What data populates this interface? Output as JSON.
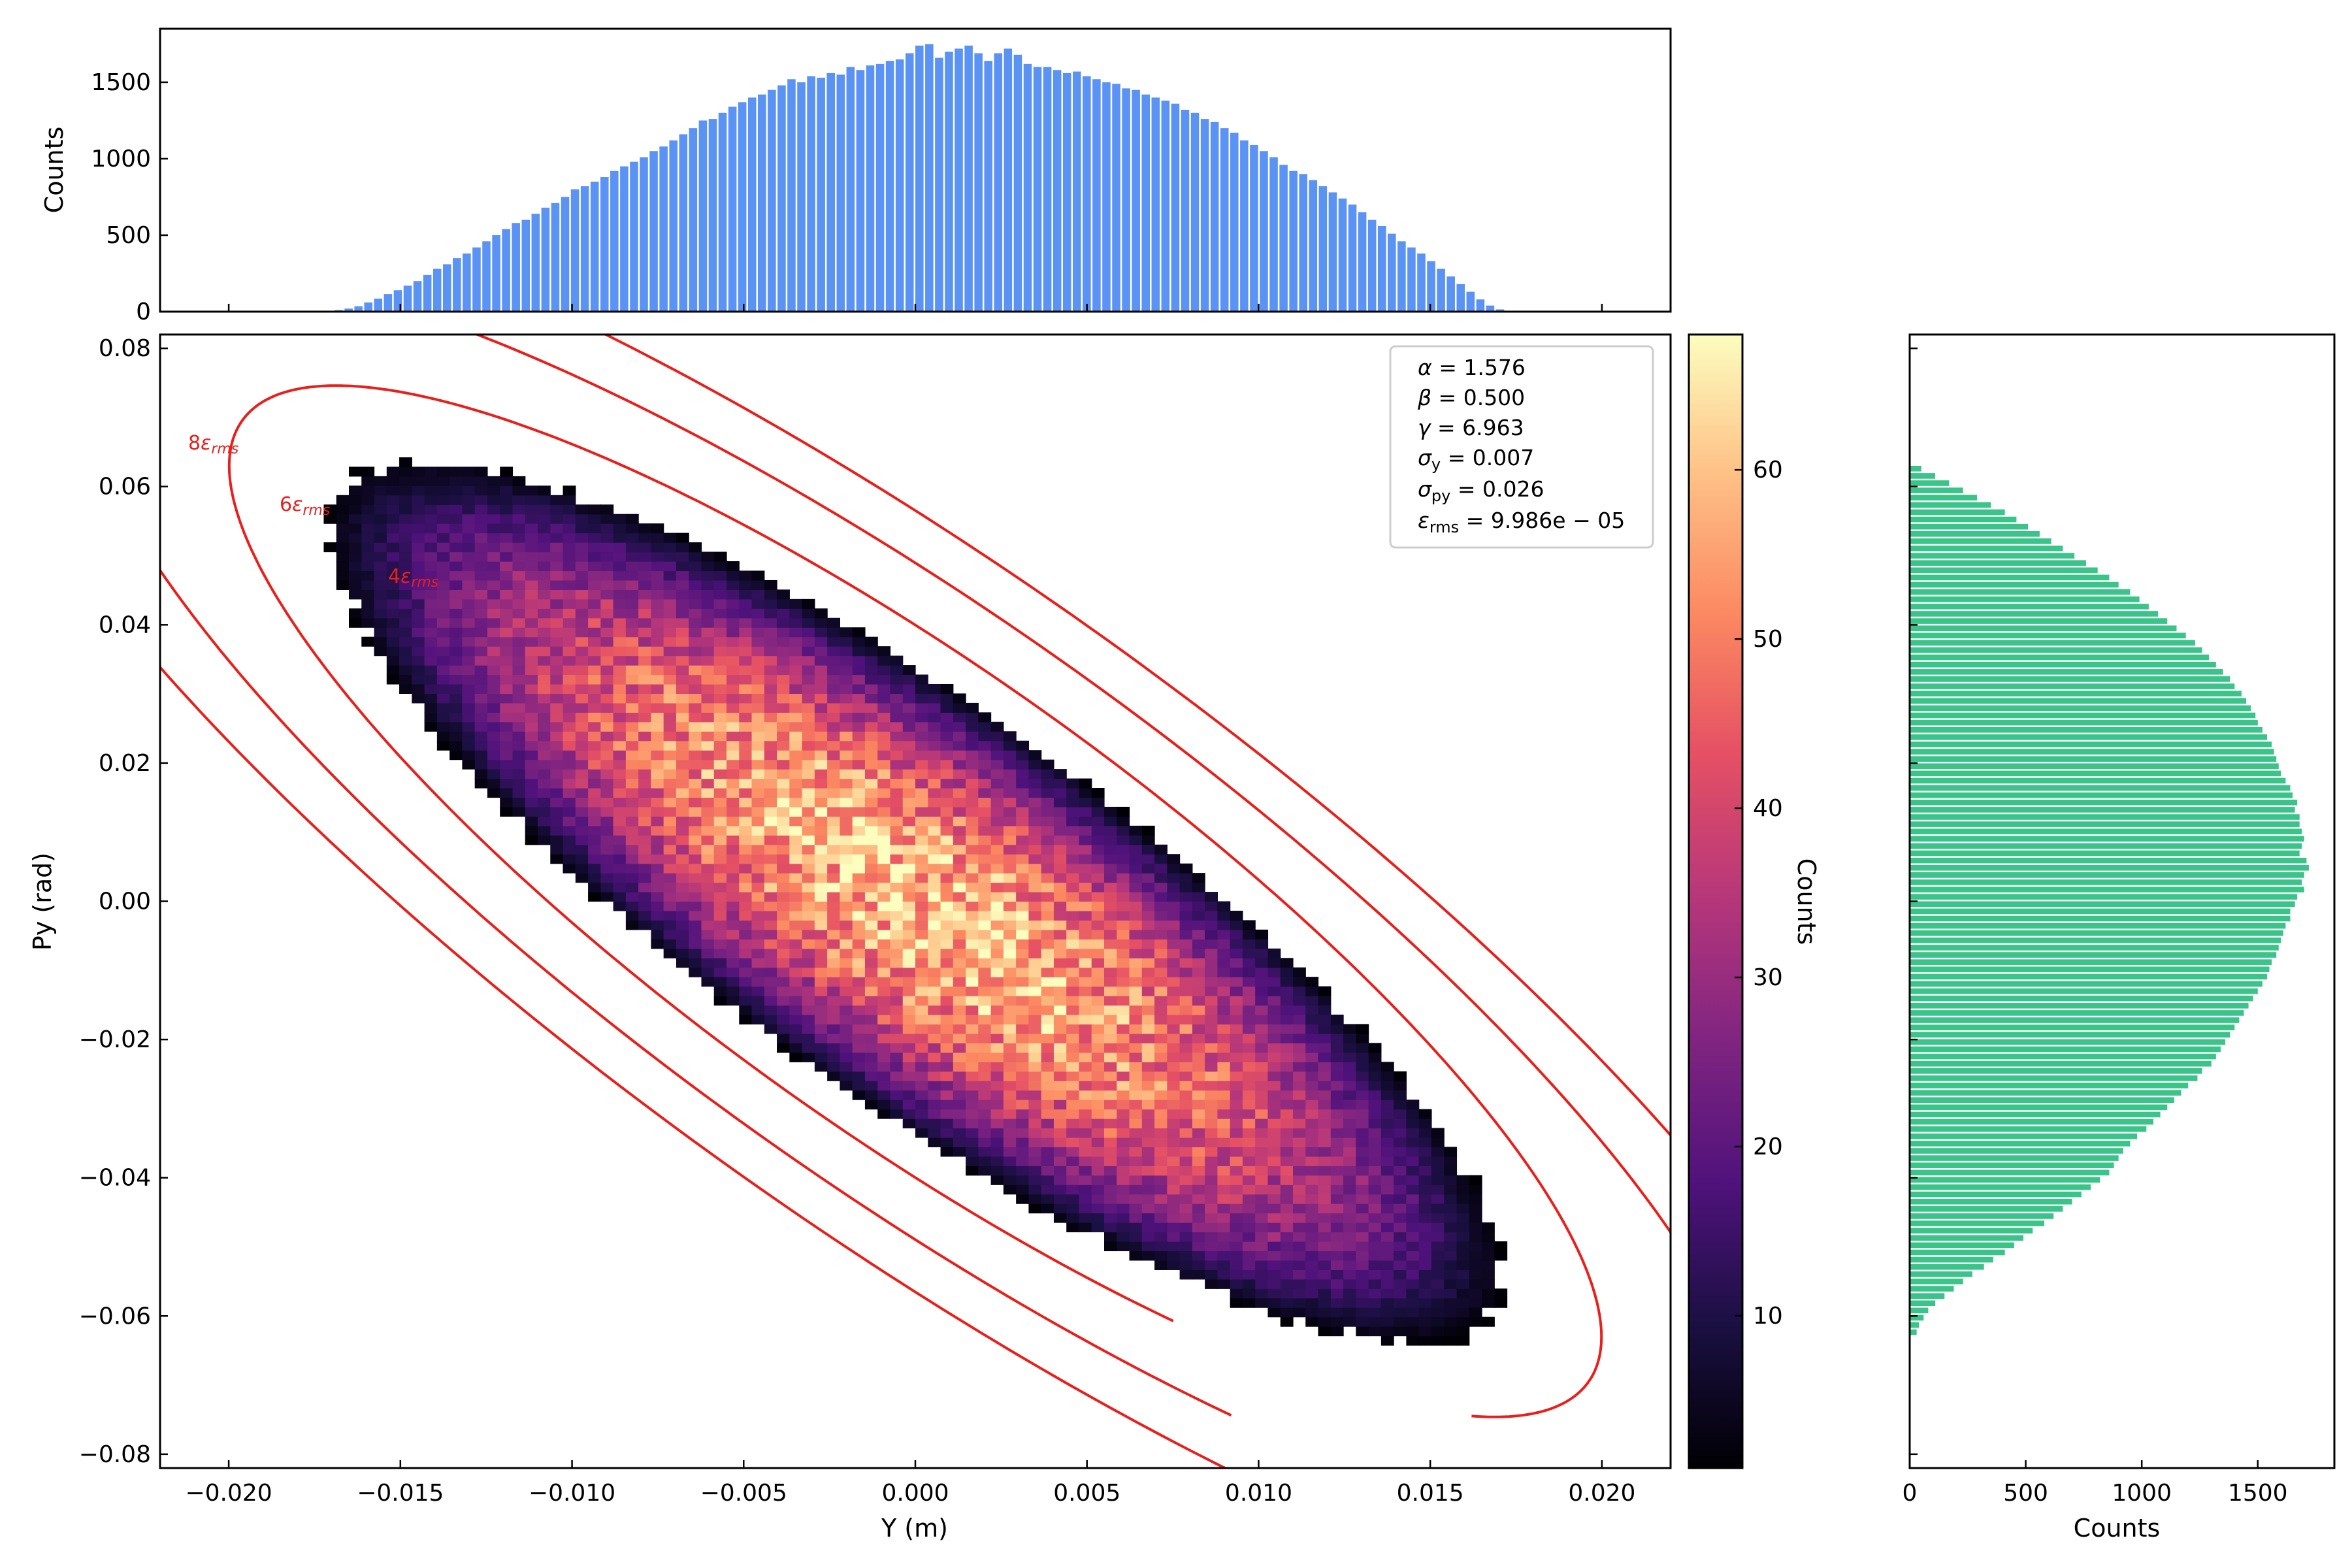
{
  "chart_data": [
    {
      "panel": "top-histogram",
      "type": "bar",
      "title": "",
      "xlabel": "",
      "ylabel": "Counts",
      "xlim": [
        -0.022,
        0.022
      ],
      "ylim": [
        0,
        1850
      ],
      "yticks": [
        0,
        500,
        1000,
        1500
      ],
      "bar_color": "#5b93f5",
      "bin_range": [
        -0.0172,
        0.0172
      ],
      "bins": 120,
      "values": [
        5,
        10,
        20,
        35,
        60,
        85,
        115,
        140,
        170,
        200,
        240,
        280,
        310,
        350,
        380,
        420,
        460,
        500,
        540,
        580,
        600,
        640,
        680,
        710,
        750,
        800,
        820,
        850,
        880,
        920,
        950,
        980,
        1010,
        1050,
        1080,
        1120,
        1160,
        1200,
        1250,
        1260,
        1300,
        1340,
        1370,
        1400,
        1420,
        1450,
        1480,
        1520,
        1500,
        1540,
        1530,
        1560,
        1550,
        1600,
        1580,
        1610,
        1620,
        1640,
        1650,
        1690,
        1740,
        1750,
        1660,
        1700,
        1720,
        1740,
        1690,
        1640,
        1690,
        1720,
        1680,
        1620,
        1600,
        1600,
        1580,
        1560,
        1570,
        1540,
        1520,
        1500,
        1490,
        1460,
        1450,
        1420,
        1400,
        1380,
        1360,
        1320,
        1300,
        1260,
        1240,
        1200,
        1170,
        1120,
        1090,
        1050,
        1010,
        960,
        920,
        900,
        860,
        820,
        780,
        740,
        700,
        650,
        600,
        560,
        510,
        460,
        420,
        380,
        330,
        280,
        230,
        180,
        130,
        80,
        40,
        15
      ]
    },
    {
      "panel": "phase-space-density",
      "type": "heatmap",
      "title": "",
      "xlabel": "Y (m)",
      "ylabel": "Py (rad)",
      "xlim": [
        -0.022,
        0.022
      ],
      "ylim": [
        -0.082,
        0.082
      ],
      "xticks": [
        -0.02,
        -0.015,
        -0.01,
        -0.005,
        0.0,
        0.005,
        0.01,
        0.015,
        0.02
      ],
      "xtick_labels": [
        "−0.020",
        "−0.015",
        "−0.010",
        "−0.005",
        "0.000",
        "0.005",
        "0.010",
        "0.015",
        "0.020"
      ],
      "yticks": [
        -0.08,
        -0.06,
        -0.04,
        -0.02,
        0.0,
        0.02,
        0.04,
        0.06,
        0.08
      ],
      "ytick_labels": [
        "−0.08",
        "−0.06",
        "−0.04",
        "−0.02",
        "0.00",
        "0.02",
        "0.04",
        "0.06",
        "0.08"
      ],
      "bins": [
        120,
        120
      ],
      "colormap": "magma",
      "twiss": {
        "alpha": 1.576,
        "beta": 0.5,
        "gamma": 6.963
      },
      "emittance_rms": 9.986e-05,
      "peak_count": 60,
      "ellipses": [
        {
          "label": "8ε_rms",
          "multiple": 8,
          "color": "#e8201c"
        },
        {
          "label": "6ε_rms",
          "multiple": 6,
          "color": "#e8201c"
        },
        {
          "label": "4ε_rms",
          "multiple": 4,
          "color": "#e8201c"
        }
      ],
      "stats_box": {
        "lines": [
          {
            "sym": "α",
            "sub": "",
            "value": "1.576"
          },
          {
            "sym": "β",
            "sub": "",
            "value": "0.500"
          },
          {
            "sym": "γ",
            "sub": "",
            "value": "6.963"
          },
          {
            "sym": "σ",
            "sub": "y",
            "value": "0.007"
          },
          {
            "sym": "σ",
            "sub": "py",
            "value": "0.026"
          },
          {
            "sym": "ε",
            "sub": "rms",
            "value": "9.986e − 05"
          }
        ]
      }
    },
    {
      "panel": "colorbar",
      "type": "colorbar",
      "label": "Counts",
      "range": [
        1,
        68
      ],
      "ticks": [
        10,
        20,
        30,
        40,
        50,
        60
      ],
      "colormap": "magma"
    },
    {
      "panel": "right-histogram",
      "type": "bar",
      "orientation": "horizontal",
      "title": "",
      "xlabel": "Counts",
      "ylabel": "",
      "xlim": [
        0,
        1830
      ],
      "ylim": [
        -0.082,
        0.082
      ],
      "xticks": [
        0,
        500,
        1000,
        1500
      ],
      "bar_color": "#3ac48a",
      "bin_range": [
        -0.063,
        0.063
      ],
      "bins": 120,
      "values_bottom_to_top": [
        30,
        40,
        60,
        80,
        110,
        150,
        190,
        230,
        270,
        320,
        360,
        410,
        450,
        490,
        530,
        580,
        620,
        660,
        700,
        740,
        780,
        820,
        860,
        880,
        900,
        920,
        950,
        980,
        1020,
        1050,
        1080,
        1110,
        1140,
        1170,
        1200,
        1240,
        1260,
        1300,
        1320,
        1340,
        1360,
        1380,
        1400,
        1420,
        1440,
        1460,
        1480,
        1500,
        1520,
        1540,
        1550,
        1560,
        1580,
        1590,
        1600,
        1610,
        1620,
        1640,
        1640,
        1660,
        1670,
        1700,
        1690,
        1700,
        1720,
        1710,
        1680,
        1690,
        1700,
        1690,
        1680,
        1680,
        1660,
        1670,
        1650,
        1640,
        1620,
        1600,
        1590,
        1580,
        1570,
        1560,
        1540,
        1520,
        1500,
        1490,
        1470,
        1450,
        1430,
        1400,
        1380,
        1350,
        1320,
        1290,
        1260,
        1230,
        1190,
        1150,
        1110,
        1070,
        1030,
        990,
        950,
        900,
        860,
        810,
        760,
        710,
        660,
        610,
        560,
        510,
        460,
        410,
        350,
        290,
        230,
        170,
        110,
        50
      ]
    }
  ]
}
